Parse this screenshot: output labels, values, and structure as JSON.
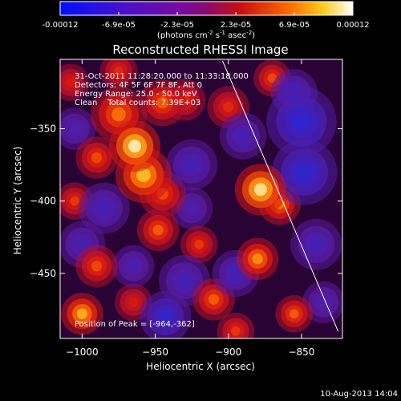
{
  "colorbar": {
    "ticks": [
      "-0.00012",
      "-6.9e-05",
      "-2.3e-05",
      "2.3e-05",
      "6.9e-05",
      "0.00012"
    ],
    "unit_label_parts": [
      "(photons cm",
      "-2",
      " s",
      "-1",
      " asec",
      "-2",
      ")"
    ]
  },
  "chart_data": {
    "type": "heatmap",
    "title": "Reconstructed RHESSI Image",
    "xlabel": "Heliocentric X (arcsec)",
    "ylabel": "Heliocentric Y (arcsec)",
    "xlim": [
      -1015,
      -822
    ],
    "ylim": [
      -495,
      -302
    ],
    "x_ticks": [
      -1000,
      -950,
      -900,
      -850
    ],
    "x_tick_labels": [
      "−1000",
      "−950",
      "−900",
      "−850"
    ],
    "y_ticks": [
      -350,
      -400,
      -450
    ],
    "y_tick_labels": [
      "−350",
      "−400",
      "−450"
    ],
    "color_range": [
      -0.00012,
      0.00012
    ],
    "annotations": [
      "31-Oct-2011 11:28:20.000 to 11:33:18.000",
      "Detectors: 4F 5F 6F 7F 8F, Att 0",
      "Energy Range: 25.0 - 50.0 keV",
      "Clean    Total counts: 7.39E+03"
    ],
    "peak_label": "Position of Peak = [-964,-362]",
    "peak": [
      -964,
      -362
    ],
    "limb_line": [
      [
        -904,
        -303
      ],
      [
        -825,
        -490
      ]
    ],
    "blobs": [
      {
        "x": -964,
        "y": -362,
        "amp": 1.0,
        "w": 11
      },
      {
        "x": -958,
        "y": -382,
        "amp": 0.8,
        "w": 12
      },
      {
        "x": -975,
        "y": -340,
        "amp": 0.55,
        "w": 12
      },
      {
        "x": -945,
        "y": -332,
        "amp": 0.5,
        "w": 10
      },
      {
        "x": -990,
        "y": -370,
        "amp": 0.45,
        "w": 9
      },
      {
        "x": -945,
        "y": -395,
        "amp": 0.45,
        "w": 10
      },
      {
        "x": -930,
        "y": -330,
        "amp": 0.35,
        "w": 9
      },
      {
        "x": -878,
        "y": -392,
        "amp": 0.95,
        "w": 11
      },
      {
        "x": -865,
        "y": -402,
        "amp": 0.55,
        "w": 9
      },
      {
        "x": -900,
        "y": -335,
        "amp": 0.35,
        "w": 9
      },
      {
        "x": -870,
        "y": -315,
        "amp": 0.45,
        "w": 8
      },
      {
        "x": -880,
        "y": -440,
        "amp": 0.65,
        "w": 9
      },
      {
        "x": -948,
        "y": -420,
        "amp": 0.5,
        "w": 9
      },
      {
        "x": -920,
        "y": -430,
        "amp": 0.4,
        "w": 8
      },
      {
        "x": -990,
        "y": -445,
        "amp": 0.45,
        "w": 9
      },
      {
        "x": -1005,
        "y": -400,
        "amp": 0.4,
        "w": 8
      },
      {
        "x": -1000,
        "y": -478,
        "amp": 0.75,
        "w": 9
      },
      {
        "x": -910,
        "y": -468,
        "amp": 0.5,
        "w": 9
      },
      {
        "x": -855,
        "y": -478,
        "amp": 0.5,
        "w": 8
      },
      {
        "x": -895,
        "y": -490,
        "amp": 0.4,
        "w": 8
      },
      {
        "x": -965,
        "y": -470,
        "amp": 0.3,
        "w": 8
      },
      {
        "x": -975,
        "y": -310,
        "amp": 0.35,
        "w": 8
      },
      {
        "x": -1008,
        "y": -318,
        "amp": 0.3,
        "w": 8
      },
      {
        "x": -850,
        "y": -345,
        "amp": -0.9,
        "w": 15
      },
      {
        "x": -848,
        "y": -380,
        "amp": -0.85,
        "w": 14
      },
      {
        "x": -855,
        "y": -325,
        "amp": -0.6,
        "w": 10
      },
      {
        "x": -890,
        "y": -355,
        "amp": -0.45,
        "w": 10
      },
      {
        "x": -943,
        "y": -480,
        "amp": -0.8,
        "w": 11
      },
      {
        "x": -930,
        "y": -455,
        "amp": -0.45,
        "w": 11
      },
      {
        "x": -895,
        "y": -450,
        "amp": -0.5,
        "w": 10
      },
      {
        "x": -840,
        "y": -430,
        "amp": -0.45,
        "w": 11
      },
      {
        "x": -985,
        "y": -405,
        "amp": -0.45,
        "w": 11
      },
      {
        "x": -1005,
        "y": -350,
        "amp": -0.3,
        "w": 9
      },
      {
        "x": -1000,
        "y": -430,
        "amp": -0.35,
        "w": 10
      },
      {
        "x": -925,
        "y": -375,
        "amp": -0.45,
        "w": 11
      },
      {
        "x": -925,
        "y": -405,
        "amp": -0.3,
        "w": 9
      },
      {
        "x": -965,
        "y": -445,
        "amp": -0.35,
        "w": 9
      },
      {
        "x": -835,
        "y": -470,
        "amp": -0.3,
        "w": 9
      }
    ]
  },
  "timestamp": "10-Aug-2013 14:04"
}
